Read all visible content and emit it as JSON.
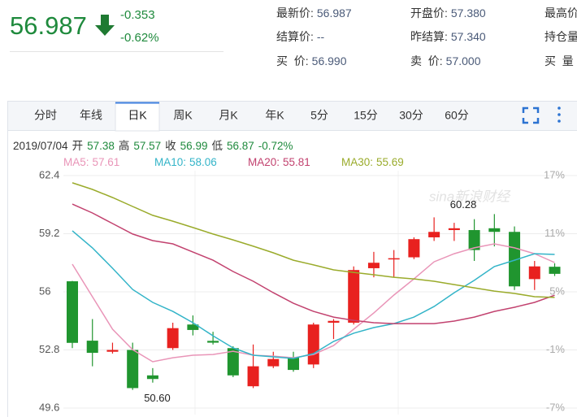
{
  "quote": {
    "price": "56.987",
    "change": "-0.353",
    "change_pct": "-0.62%",
    "fields": [
      [
        {
          "label": "最新价:",
          "value": "56.987"
        },
        {
          "label": "结算价:",
          "value": "--"
        },
        {
          "label": "买  价:",
          "value": "56.990"
        }
      ],
      [
        {
          "label": "开盘价:",
          "value": "57.380"
        },
        {
          "label": "昨结算:",
          "value": "57.340"
        },
        {
          "label": "卖  价:",
          "value": "57.000"
        }
      ],
      [
        {
          "label": "最高价"
        },
        {
          "label": "持仓量"
        },
        {
          "label": "买  量"
        }
      ]
    ]
  },
  "tabs": [
    {
      "label": "分时"
    },
    {
      "label": "年线"
    },
    {
      "label": "日K",
      "selected": true
    },
    {
      "label": "周K"
    },
    {
      "label": "月K"
    },
    {
      "label": "年K"
    },
    {
      "label": "5分"
    },
    {
      "label": "15分"
    },
    {
      "label": "30分"
    },
    {
      "label": "60分"
    }
  ],
  "chart_data": {
    "type": "candlestick",
    "info": {
      "date": "2019/07/04",
      "open_label": "开",
      "high_label": "高",
      "close_label": "收",
      "low_label": "低",
      "change": "-0.72%"
    },
    "up_color": "#e8211f",
    "down_color": "#20952f",
    "grid": true,
    "watermark": "sina新浪财经",
    "max_label": "60.28",
    "min_label": "50.60",
    "ylim": [
      49.6,
      62.4
    ],
    "yticks": [
      62.4,
      59.2,
      56,
      52.8,
      49.6
    ],
    "y2lim": [
      -7,
      17
    ],
    "y2ticks": [
      {
        "value": 17,
        "label": "17%"
      },
      {
        "value": 11,
        "label": "11%"
      },
      {
        "value": 5,
        "label": "5%"
      },
      {
        "value": -1,
        "label": "-1%"
      },
      {
        "value": -7,
        "label": "-7%"
      }
    ],
    "candles": [
      {
        "open": 56.58,
        "high": 56.6,
        "low": 52.9,
        "close": 53.19
      },
      {
        "open": 53.31,
        "high": 54.5,
        "low": 51.9,
        "close": 52.64
      },
      {
        "open": 52.7,
        "high": 53.2,
        "low": 52.6,
        "close": 52.8
      },
      {
        "open": 52.8,
        "high": 53.2,
        "low": 50.6,
        "close": 50.7
      },
      {
        "open": 51.4,
        "high": 51.8,
        "low": 51.0,
        "close": 51.2
      },
      {
        "open": 52.9,
        "high": 54.3,
        "low": 52.8,
        "close": 54.0
      },
      {
        "open": 54.2,
        "high": 54.7,
        "low": 53.6,
        "close": 53.9
      },
      {
        "open": 53.3,
        "high": 53.8,
        "low": 53.1,
        "close": 53.2
      },
      {
        "open": 52.9,
        "high": 53.0,
        "low": 51.3,
        "close": 51.4
      },
      {
        "open": 50.8,
        "high": 53.1,
        "low": 50.7,
        "close": 51.9
      },
      {
        "open": 51.9,
        "high": 52.7,
        "low": 51.8,
        "close": 52.3
      },
      {
        "open": 52.4,
        "high": 52.7,
        "low": 51.6,
        "close": 51.7
      },
      {
        "open": 52.0,
        "high": 54.3,
        "low": 51.8,
        "close": 54.2
      },
      {
        "open": 54.3,
        "high": 54.5,
        "low": 53.4,
        "close": 54.4
      },
      {
        "open": 54.3,
        "high": 57.4,
        "low": 54.2,
        "close": 57.2
      },
      {
        "open": 57.3,
        "high": 58.2,
        "low": 56.8,
        "close": 57.6
      },
      {
        "open": 57.8,
        "high": 58.3,
        "low": 56.8,
        "close": 57.85
      },
      {
        "open": 57.9,
        "high": 59.0,
        "low": 57.8,
        "close": 58.9
      },
      {
        "open": 59.0,
        "high": 60.1,
        "low": 58.8,
        "close": 59.3
      },
      {
        "open": 59.4,
        "high": 59.8,
        "low": 58.8,
        "close": 59.5
      },
      {
        "open": 59.4,
        "high": 60.0,
        "low": 57.7,
        "close": 58.3
      },
      {
        "open": 59.5,
        "high": 60.28,
        "low": 58.5,
        "close": 59.3
      },
      {
        "open": 59.3,
        "high": 59.6,
        "low": 56.1,
        "close": 56.3
      },
      {
        "open": 56.7,
        "high": 57.7,
        "low": 56.1,
        "close": 57.4
      },
      {
        "open": 57.38,
        "high": 57.57,
        "low": 56.87,
        "close": 56.99
      }
    ],
    "series": [
      {
        "name": "MA5:",
        "color": "#e995b8",
        "values": [
          57.52,
          55.73,
          53.94,
          52.82,
          52.15,
          52.37,
          52.51,
          52.55,
          52.73,
          52.51,
          52.46,
          52.37,
          52.55,
          53.04,
          53.94,
          54.83,
          55.82,
          56.71,
          57.65,
          58.1,
          58.42,
          58.64,
          58.42,
          58.1,
          57.61
        ]
      },
      {
        "name": "MA10:",
        "color": "#33b4c8",
        "values": [
          59.36,
          58.42,
          57.3,
          56.13,
          55.42,
          54.92,
          54.3,
          53.58,
          52.91,
          52.51,
          52.42,
          52.33,
          52.6,
          53.27,
          53.72,
          54.03,
          54.25,
          54.61,
          55.19,
          55.95,
          56.63,
          57.39,
          57.74,
          58.1,
          58.06
        ]
      },
      {
        "name": "MA20:",
        "color": "#c2426f",
        "values": [
          60.83,
          60.34,
          59.76,
          59.18,
          58.82,
          58.64,
          58.19,
          57.74,
          57.12,
          56.58,
          55.95,
          55.37,
          54.92,
          54.61,
          54.43,
          54.3,
          54.25,
          54.25,
          54.25,
          54.39,
          54.61,
          54.92,
          55.15,
          55.42,
          55.81
        ]
      },
      {
        "name": "MA30:",
        "color": "#9aab2b",
        "values": [
          62.0,
          61.64,
          61.19,
          60.7,
          60.21,
          59.89,
          59.54,
          59.18,
          58.86,
          58.51,
          58.15,
          57.74,
          57.48,
          57.21,
          57.07,
          56.94,
          56.8,
          56.71,
          56.58,
          56.4,
          56.22,
          56.04,
          55.91,
          55.73,
          55.69
        ]
      }
    ]
  }
}
